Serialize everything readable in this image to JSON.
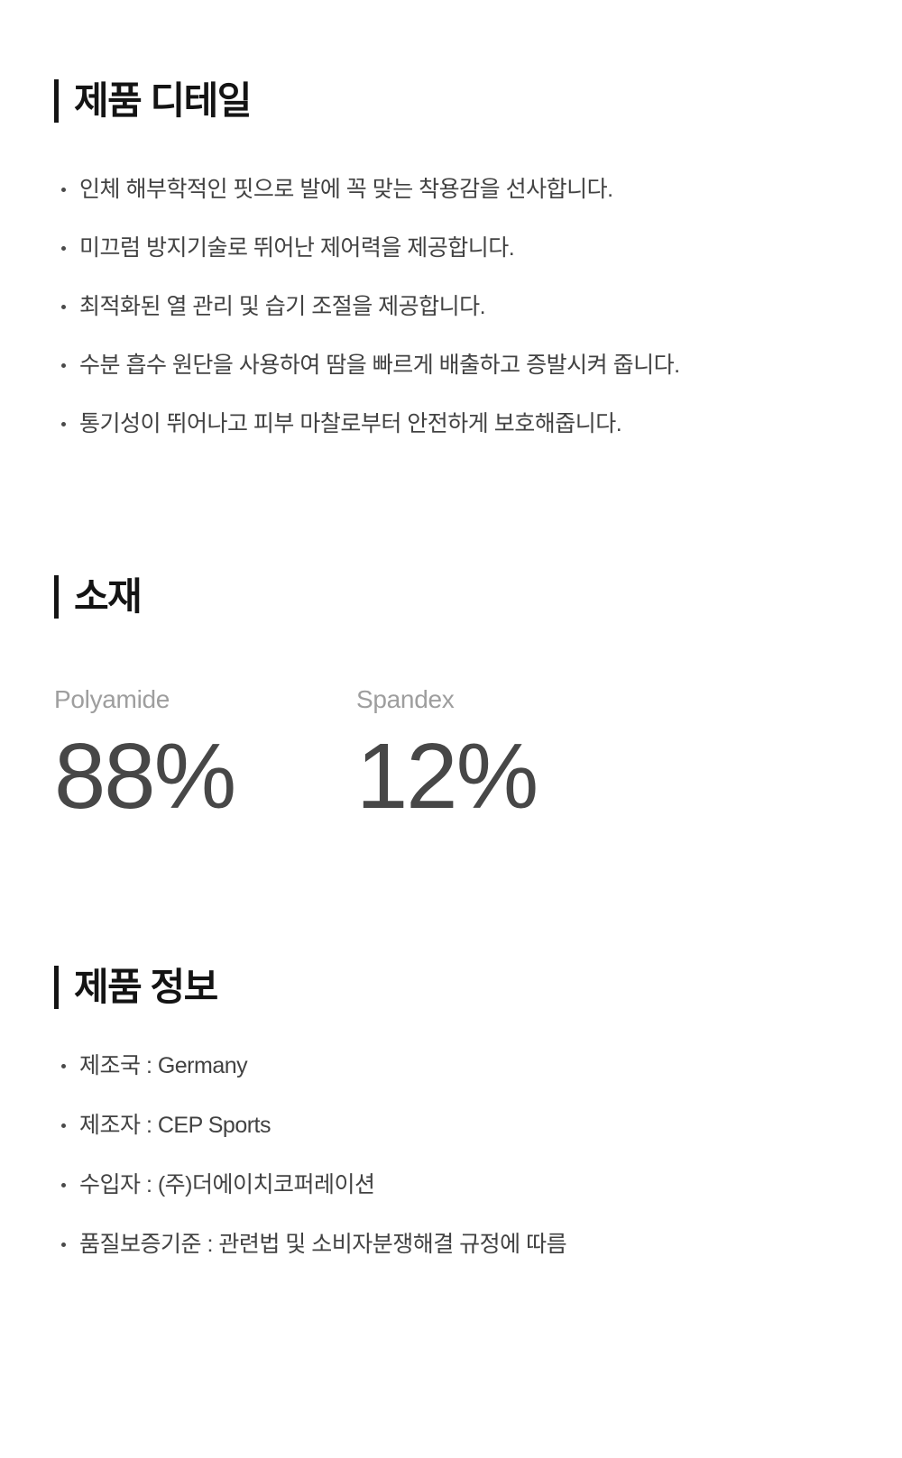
{
  "colors": {
    "title-color": "#141414",
    "body-color": "#424242",
    "bullet-color": "#4a4a4a",
    "label-color": "#9e9e9e",
    "value-color": "#474747",
    "background": "#ffffff"
  },
  "sections": {
    "detail": {
      "title": "제품 디테일",
      "bullets": [
        "인체 해부학적인 핏으로 발에 꼭 맞는 착용감을 선사합니다.",
        "미끄럼 방지기술로 뛰어난 제어력을 제공합니다.",
        "최적화된 열 관리 및 습기 조절을 제공합니다.",
        "수분 흡수 원단을 사용하여 땀을 빠르게 배출하고 증발시켜 줍니다.",
        "통기성이 뛰어나고 피부 마찰로부터 안전하게 보호해줍니다."
      ]
    },
    "material": {
      "title": "소재",
      "items": [
        {
          "label": "Polyamide",
          "value": "88%"
        },
        {
          "label": "Spandex",
          "value": "12%"
        }
      ]
    },
    "info": {
      "title": "제품 정보",
      "bullets": [
        "제조국 : Germany",
        "제조자 : CEP Sports",
        "수입자 : (주)더에이치코퍼레이션",
        "품질보증기준 : 관련법 및 소비자분쟁해결 규정에 따름"
      ]
    }
  }
}
